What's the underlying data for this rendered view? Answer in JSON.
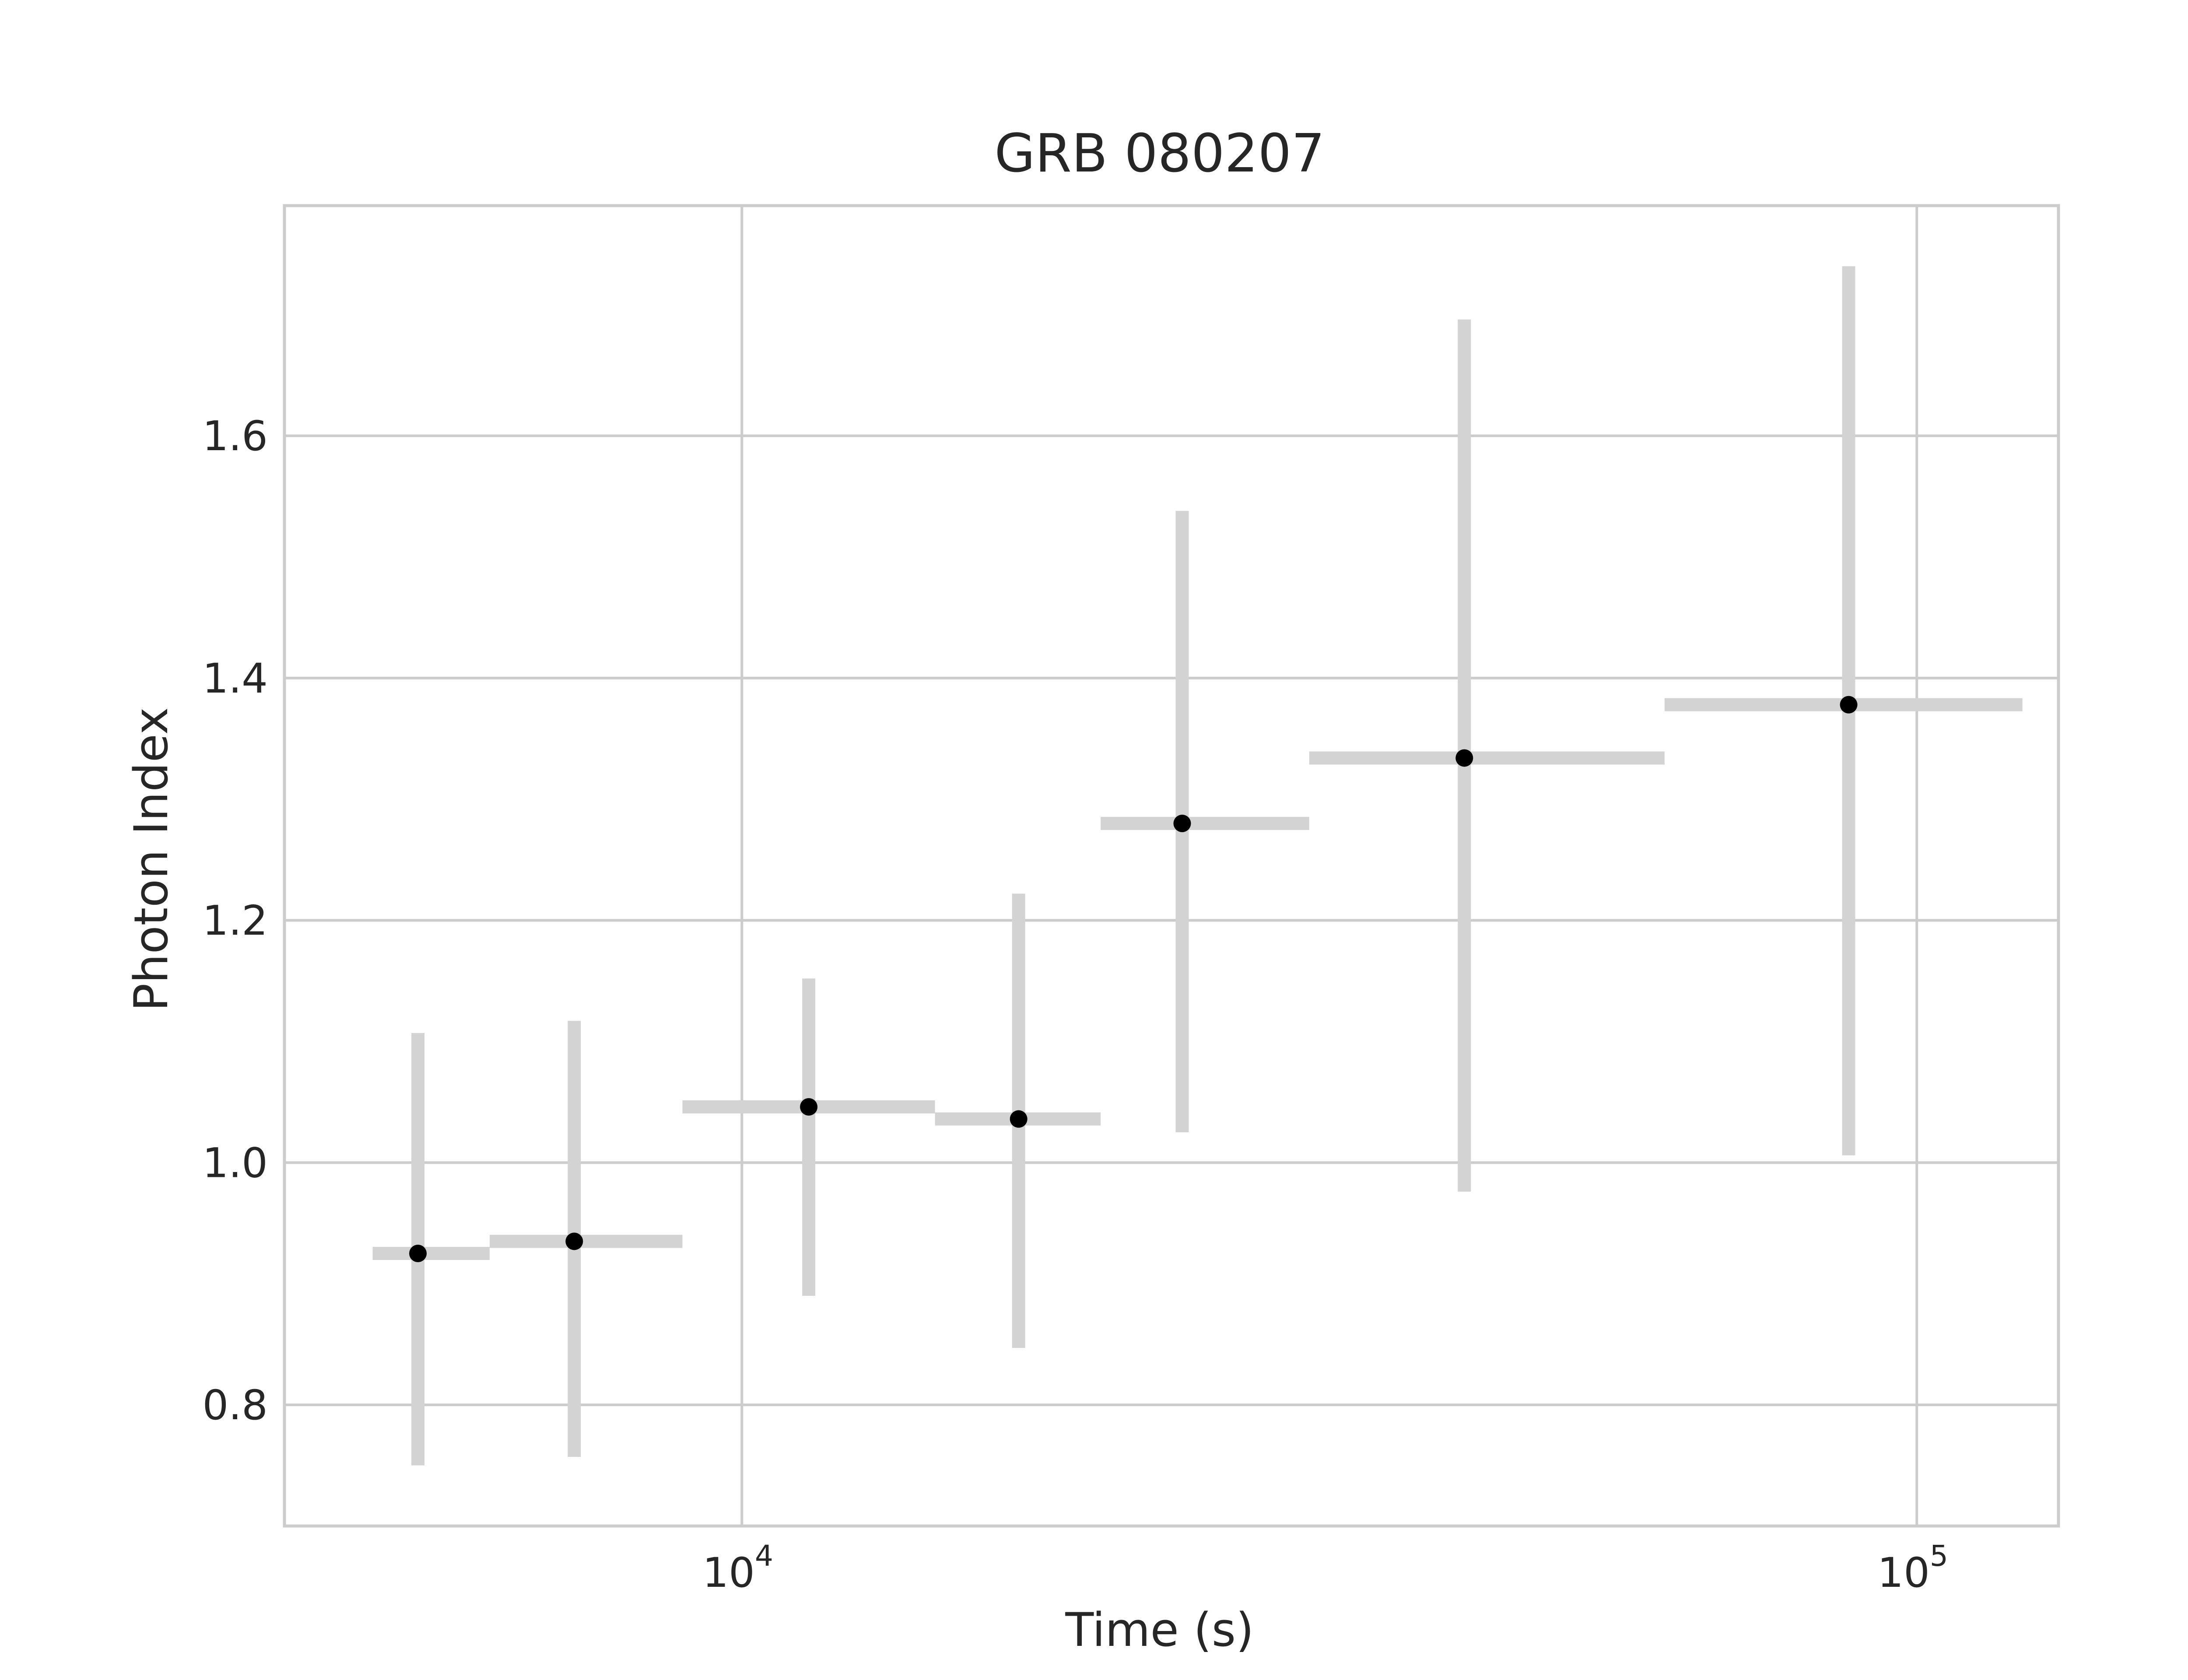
{
  "chart_data": {
    "type": "scatter",
    "title": "GRB 080207",
    "xlabel": "Time (s)",
    "ylabel": "Photon Index",
    "xscale": "log",
    "xlim": [
      4080,
      132000
    ],
    "ylim": [
      0.7,
      1.79
    ],
    "x_ticks": [
      {
        "value": 10000,
        "base": "10",
        "exp": "4"
      },
      {
        "value": 100000,
        "base": "10",
        "exp": "5"
      }
    ],
    "y_ticks": [
      {
        "value": 0.8,
        "label": "0.8"
      },
      {
        "value": 1.0,
        "label": "1.0"
      },
      {
        "value": 1.2,
        "label": "1.2"
      },
      {
        "value": 1.4,
        "label": "1.4"
      },
      {
        "value": 1.6,
        "label": "1.6"
      }
    ],
    "grid": true,
    "legend": "none",
    "colors": {
      "errorbar": "#d3d3d3",
      "marker": "#000000",
      "grid": "#cccccc",
      "frame": "#cccccc",
      "text": "#262626"
    },
    "points": [
      {
        "x": 5300,
        "y": 0.925,
        "xerr_low": 4850,
        "xerr_high": 6100,
        "yerr_low": 0.75,
        "yerr_high": 1.107
      },
      {
        "x": 7200,
        "y": 0.935,
        "xerr_low": 6100,
        "xerr_high": 8900,
        "yerr_low": 0.757,
        "yerr_high": 1.117
      },
      {
        "x": 11400,
        "y": 1.046,
        "xerr_low": 8900,
        "xerr_high": 14600,
        "yerr_low": 0.89,
        "yerr_high": 1.152
      },
      {
        "x": 17200,
        "y": 1.036,
        "xerr_low": 14600,
        "xerr_high": 20200,
        "yerr_low": 0.847,
        "yerr_high": 1.222
      },
      {
        "x": 23700,
        "y": 1.28,
        "xerr_low": 20200,
        "xerr_high": 30400,
        "yerr_low": 1.025,
        "yerr_high": 1.538
      },
      {
        "x": 41200,
        "y": 1.334,
        "xerr_low": 30400,
        "xerr_high": 61000,
        "yerr_low": 0.976,
        "yerr_high": 1.696
      },
      {
        "x": 87500,
        "y": 1.378,
        "xerr_low": 61000,
        "xerr_high": 123000,
        "yerr_low": 1.006,
        "yerr_high": 1.74
      }
    ]
  }
}
